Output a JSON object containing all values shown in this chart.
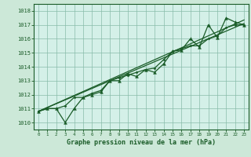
{
  "xlabel": "Graphe pression niveau de la mer (hPa)",
  "bg_color": "#cce8d8",
  "plot_bg_color": "#d4f0e8",
  "grid_color": "#88bbaa",
  "line_color": "#1a5c28",
  "xlim": [
    -0.5,
    23.5
  ],
  "ylim": [
    1009.5,
    1018.5
  ],
  "yticks": [
    1010,
    1011,
    1012,
    1013,
    1014,
    1015,
    1016,
    1017,
    1018
  ],
  "xticks": [
    0,
    1,
    2,
    3,
    4,
    5,
    6,
    7,
    8,
    9,
    10,
    11,
    12,
    13,
    14,
    15,
    16,
    17,
    18,
    19,
    20,
    21,
    22,
    23
  ],
  "hours": [
    0,
    1,
    2,
    3,
    4,
    5,
    6,
    7,
    8,
    9,
    10,
    11,
    12,
    13,
    14,
    15,
    16,
    17,
    18,
    19,
    20,
    21,
    22,
    23
  ],
  "pressure_main": [
    1010.8,
    1011.0,
    1011.0,
    1010.0,
    1011.0,
    1011.8,
    1012.0,
    1012.2,
    1013.0,
    1013.0,
    1013.5,
    1013.3,
    1013.8,
    1013.6,
    1014.2,
    1015.1,
    1015.2,
    1016.0,
    1015.4,
    1017.0,
    1016.1,
    1017.5,
    1017.2,
    1017.0
  ],
  "pressure_line2": [
    1010.8,
    1011.0,
    1011.0,
    1011.2,
    1011.8,
    1011.8,
    1012.1,
    1012.3,
    1013.0,
    1013.2,
    1013.4,
    1013.6,
    1013.8,
    1013.9,
    1014.5,
    1015.1,
    1015.3,
    1015.5,
    1015.5,
    1016.0,
    1016.2,
    1016.8,
    1017.0,
    1017.0
  ],
  "trend_line": [
    [
      0,
      1010.8
    ],
    [
      23,
      1017.1
    ]
  ],
  "trend_line2": [
    [
      0,
      1010.8
    ],
    [
      23,
      1017.35
    ]
  ]
}
